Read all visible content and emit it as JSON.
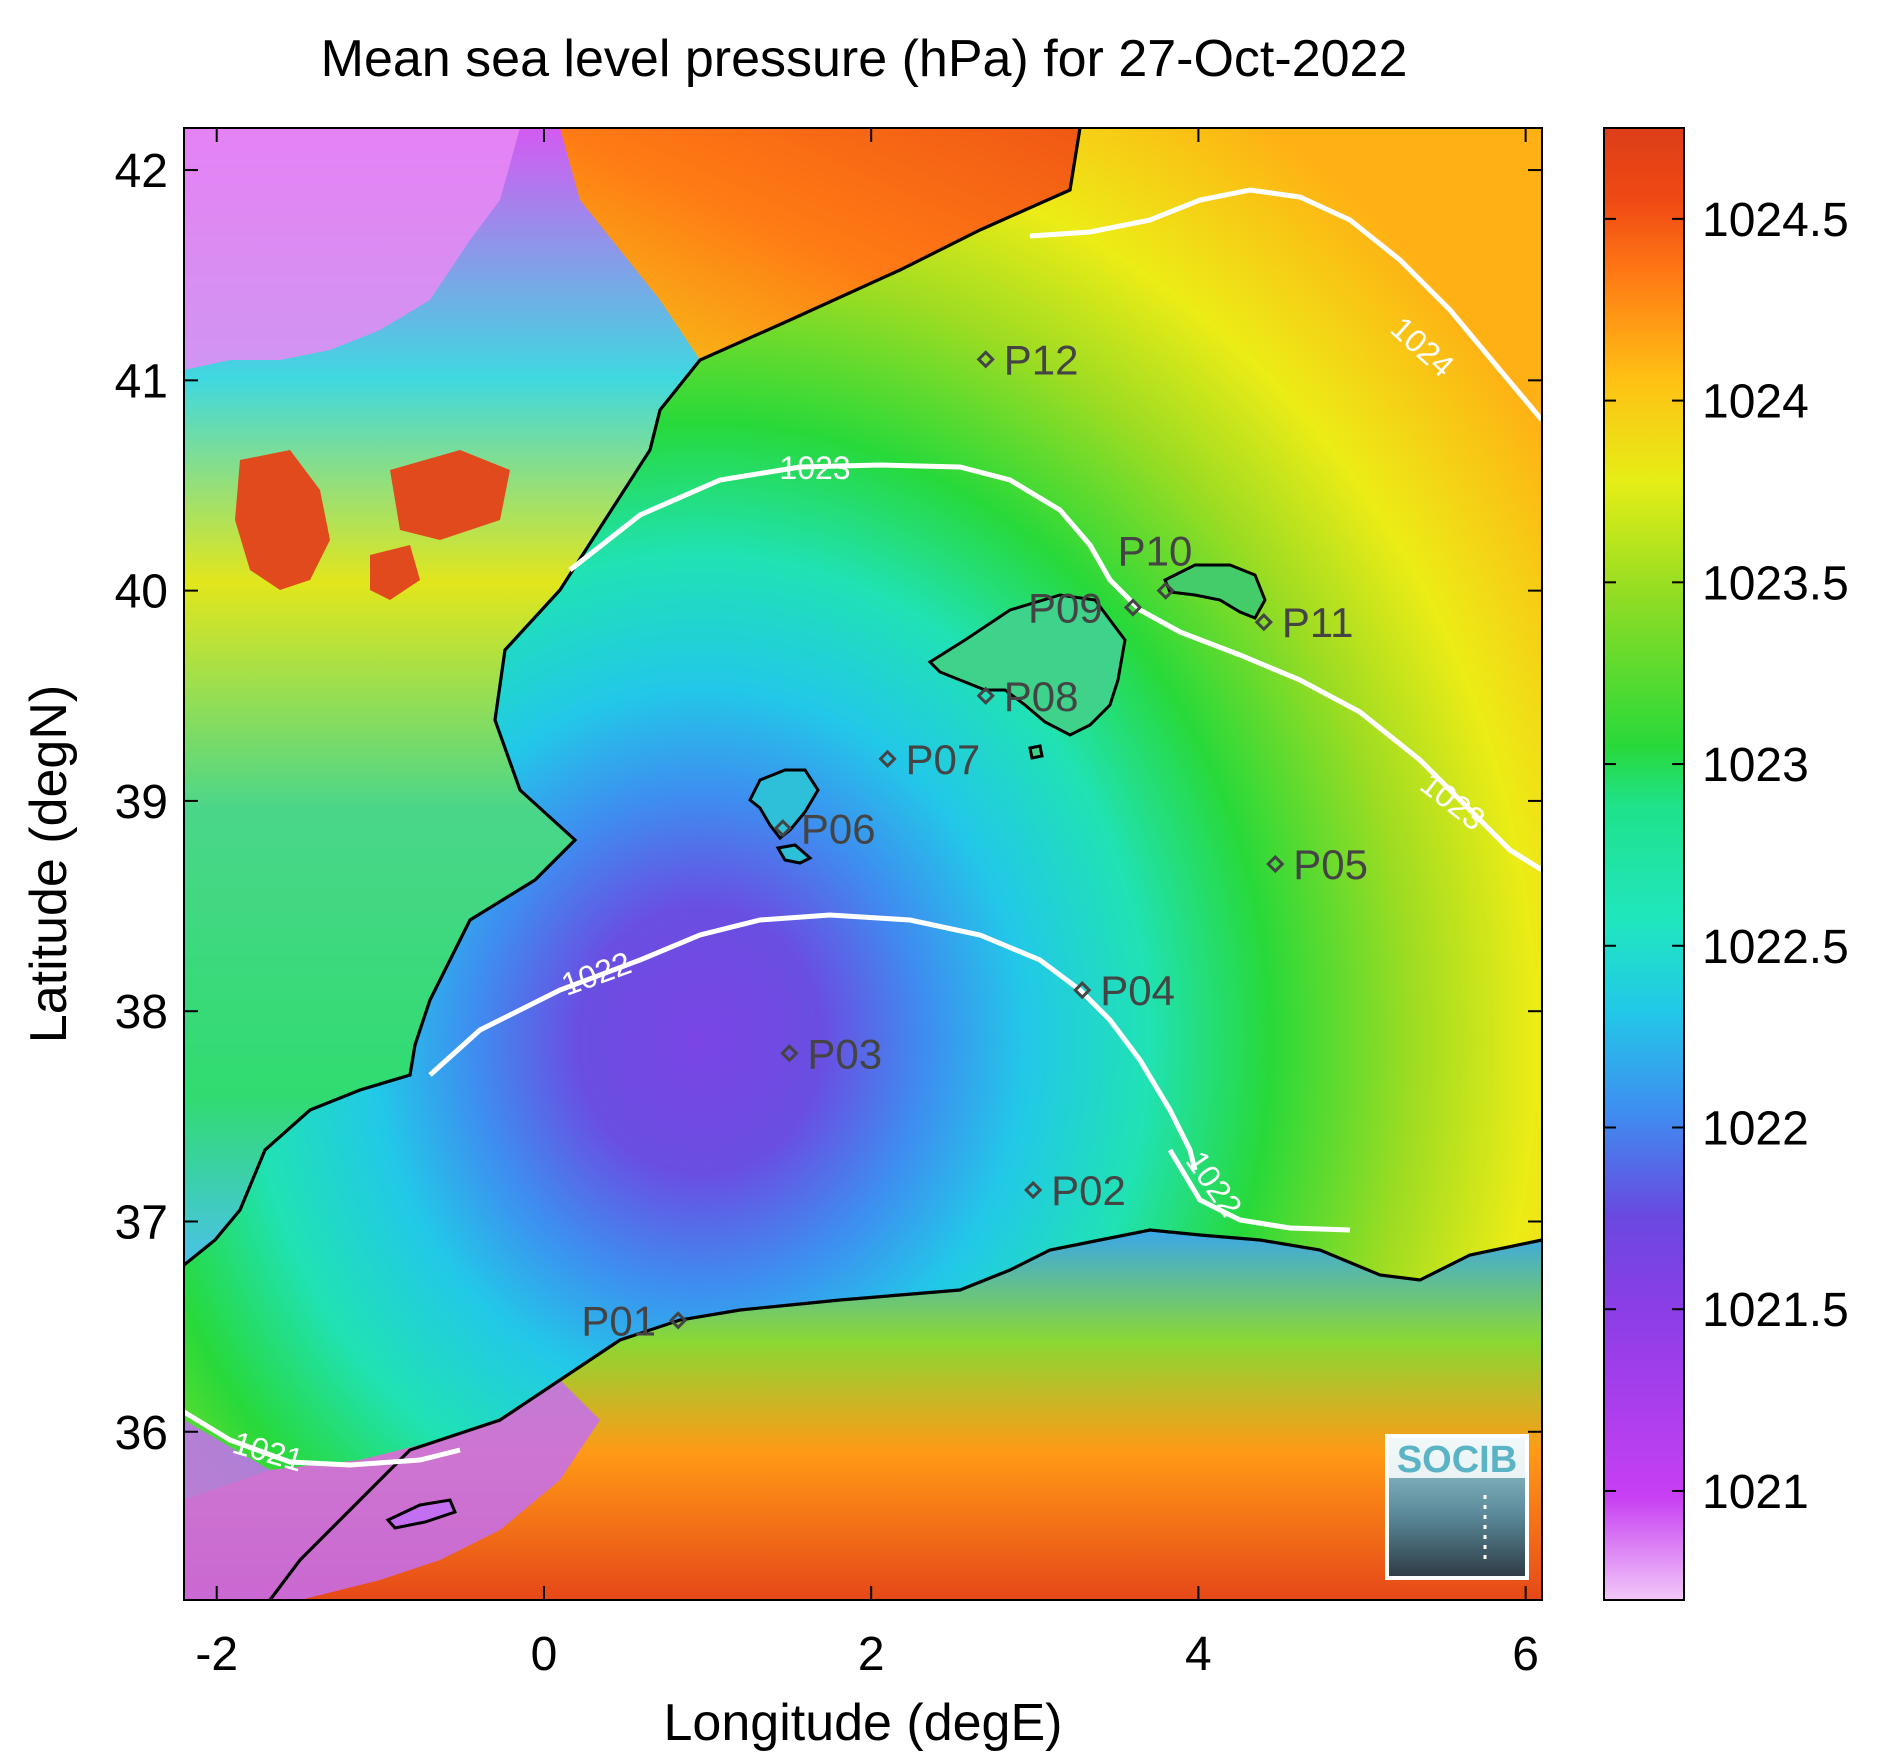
{
  "title": "Mean sea level pressure (hPa) for 27-Oct-2022",
  "axes": {
    "xlabel": "Longitude (degE)",
    "ylabel": "Latitude (degN)",
    "x_range": [
      -2.2,
      6.1
    ],
    "y_range": [
      35.2,
      42.2
    ],
    "x_ticks": [
      {
        "value": -2,
        "label": "-2"
      },
      {
        "value": 0,
        "label": "0"
      },
      {
        "value": 2,
        "label": "2"
      },
      {
        "value": 4,
        "label": "4"
      },
      {
        "value": 6,
        "label": "6"
      }
    ],
    "y_ticks": [
      {
        "value": 36,
        "label": "36"
      },
      {
        "value": 37,
        "label": "37"
      },
      {
        "value": 38,
        "label": "38"
      },
      {
        "value": 39,
        "label": "39"
      },
      {
        "value": 40,
        "label": "40"
      },
      {
        "value": 41,
        "label": "41"
      },
      {
        "value": 42,
        "label": "42"
      }
    ]
  },
  "colorbar": {
    "range": [
      1020.7,
      1024.75
    ],
    "ticks": [
      {
        "value": 1021,
        "label": "1021"
      },
      {
        "value": 1021.5,
        "label": "1021.5"
      },
      {
        "value": 1022,
        "label": "1022"
      },
      {
        "value": 1022.5,
        "label": "1022.5"
      },
      {
        "value": 1023,
        "label": "1023"
      },
      {
        "value": 1023.5,
        "label": "1023.5"
      },
      {
        "value": 1024,
        "label": "1024"
      },
      {
        "value": 1024.5,
        "label": "1024.5"
      }
    ],
    "colors": [
      "#f2c8f8",
      "#c73ff2",
      "#8a3ee6",
      "#6a48e0",
      "#3f8cf0",
      "#22c8e8",
      "#20e6c0",
      "#1fe28a",
      "#28d93a",
      "#8fdc24",
      "#e6ee16",
      "#ffc014",
      "#ff7a14",
      "#f04a14",
      "#dd3e18"
    ]
  },
  "contours": [
    {
      "label": "1021"
    },
    {
      "label": "1022"
    },
    {
      "label": "1022"
    },
    {
      "label": "1023"
    },
    {
      "label": "1023"
    },
    {
      "label": "1024"
    }
  ],
  "stations": [
    {
      "name": "P01",
      "lon": 0.82,
      "lat": 36.53
    },
    {
      "name": "P02",
      "lon": 2.99,
      "lat": 37.15
    },
    {
      "name": "P03",
      "lon": 1.5,
      "lat": 37.8
    },
    {
      "name": "P04",
      "lon": 3.29,
      "lat": 38.1
    },
    {
      "name": "P05",
      "lon": 4.47,
      "lat": 38.7
    },
    {
      "name": "P06",
      "lon": 1.46,
      "lat": 38.87
    },
    {
      "name": "P07",
      "lon": 2.1,
      "lat": 39.2
    },
    {
      "name": "P08",
      "lon": 2.7,
      "lat": 39.5
    },
    {
      "name": "P09",
      "lon": 3.6,
      "lat": 39.92
    },
    {
      "name": "P10",
      "lon": 3.8,
      "lat": 40.0
    },
    {
      "name": "P11",
      "lon": 4.4,
      "lat": 39.85
    },
    {
      "name": "P12",
      "lon": 2.7,
      "lat": 41.1
    }
  ],
  "logo": {
    "text": "SOCIB"
  }
}
